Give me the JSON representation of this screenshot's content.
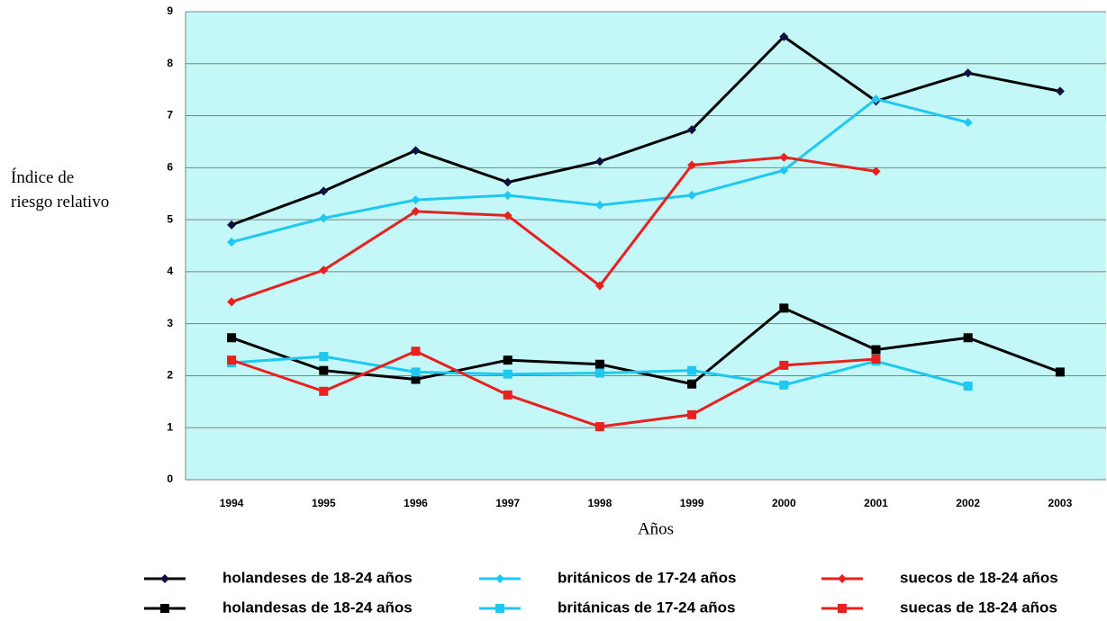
{
  "chart_data": {
    "type": "line",
    "y_label": "Índice de riesgo relativo",
    "x_label": "Años",
    "categories": [
      "1994",
      "1995",
      "1996",
      "1997",
      "1998",
      "1999",
      "2000",
      "2001",
      "2002",
      "2003"
    ],
    "ylim": [
      0,
      9
    ],
    "yticks": [
      0,
      1,
      2,
      3,
      4,
      5,
      6,
      7,
      8,
      9
    ],
    "grid": true,
    "series": [
      {
        "name": "holandeses de 18-24 años",
        "color": "#000000",
        "marker": "diamond",
        "values": [
          4.9,
          5.55,
          6.33,
          5.72,
          6.12,
          6.73,
          8.52,
          7.28,
          7.82,
          7.47
        ]
      },
      {
        "name": "británicos de 17-24 años",
        "color": "#1ec8f0",
        "marker": "diamond",
        "values": [
          4.57,
          5.03,
          5.38,
          5.47,
          5.28,
          5.47,
          5.95,
          7.32,
          6.87,
          null
        ]
      },
      {
        "name": "suecos de 18-24 años",
        "color": "#e8201e",
        "marker": "diamond",
        "values": [
          3.42,
          4.03,
          5.16,
          5.08,
          3.73,
          6.05,
          6.2,
          5.93,
          null,
          null
        ]
      },
      {
        "name": "holandesas de 18-24 años",
        "color": "#000000",
        "marker": "square",
        "values": [
          2.73,
          2.1,
          1.93,
          2.3,
          2.22,
          1.84,
          3.3,
          2.5,
          2.73,
          2.07
        ]
      },
      {
        "name": "británicas de 17-24 años",
        "color": "#1ec8f0",
        "marker": "square",
        "values": [
          2.25,
          2.37,
          2.07,
          2.03,
          2.05,
          2.1,
          1.82,
          2.28,
          1.8,
          null
        ]
      },
      {
        "name": "suecas de 18-24 años",
        "color": "#e8201e",
        "marker": "square",
        "values": [
          2.3,
          1.7,
          2.47,
          1.63,
          1.02,
          1.25,
          2.2,
          2.32,
          null,
          null
        ]
      }
    ]
  }
}
